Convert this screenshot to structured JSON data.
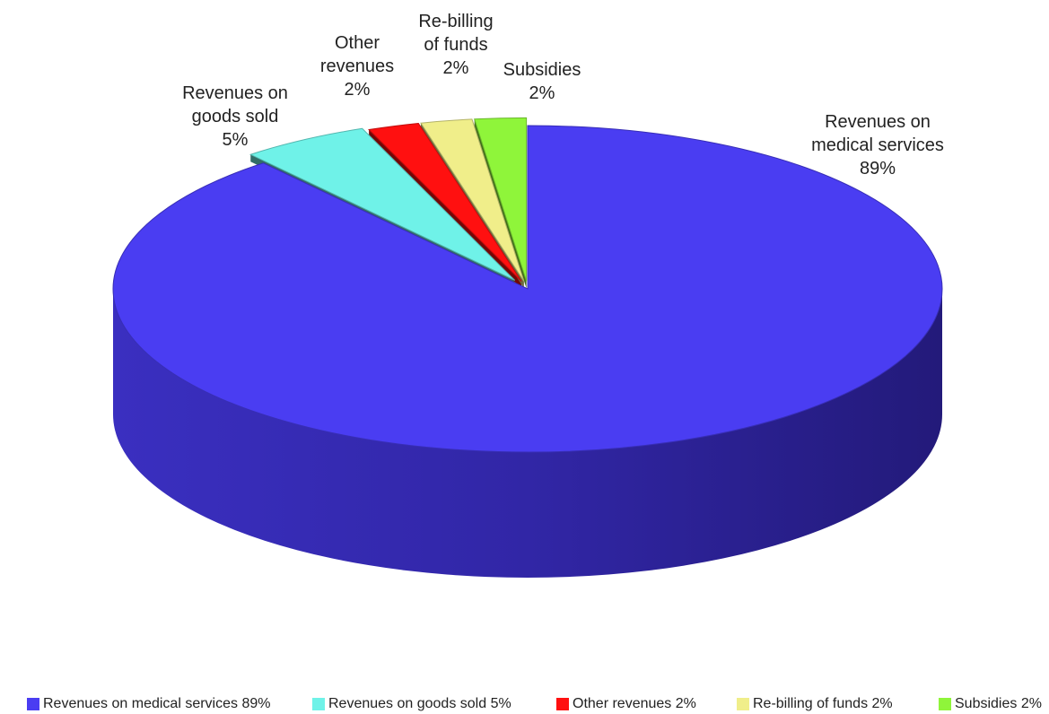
{
  "chart_data": {
    "type": "pie",
    "title": "",
    "slices": [
      {
        "label": "Revenues on medical services",
        "value": 89,
        "value_label": "89%",
        "color": "#4a3df2",
        "legend_label": "Revenues on medical services 89%"
      },
      {
        "label": "Revenues on goods sold",
        "value": 5,
        "value_label": "5%",
        "color": "#6ff2e8",
        "legend_label": "Revenues on goods sold 5%"
      },
      {
        "label": "Other revenues",
        "value": 2,
        "value_label": "2%",
        "color": "#ff1010",
        "legend_label": "Other revenues 2%"
      },
      {
        "label": "Re-billing of funds",
        "value": 2,
        "value_label": "2%",
        "color": "#f0ee8a",
        "legend_label": "Re-billing of funds 2%"
      },
      {
        "label": "Subsidies",
        "value": 2,
        "value_label": "2%",
        "color": "#8ff53a",
        "legend_label": "Subsidies 2%"
      }
    ],
    "legend_position": "bottom",
    "style": "3d-exploded"
  }
}
